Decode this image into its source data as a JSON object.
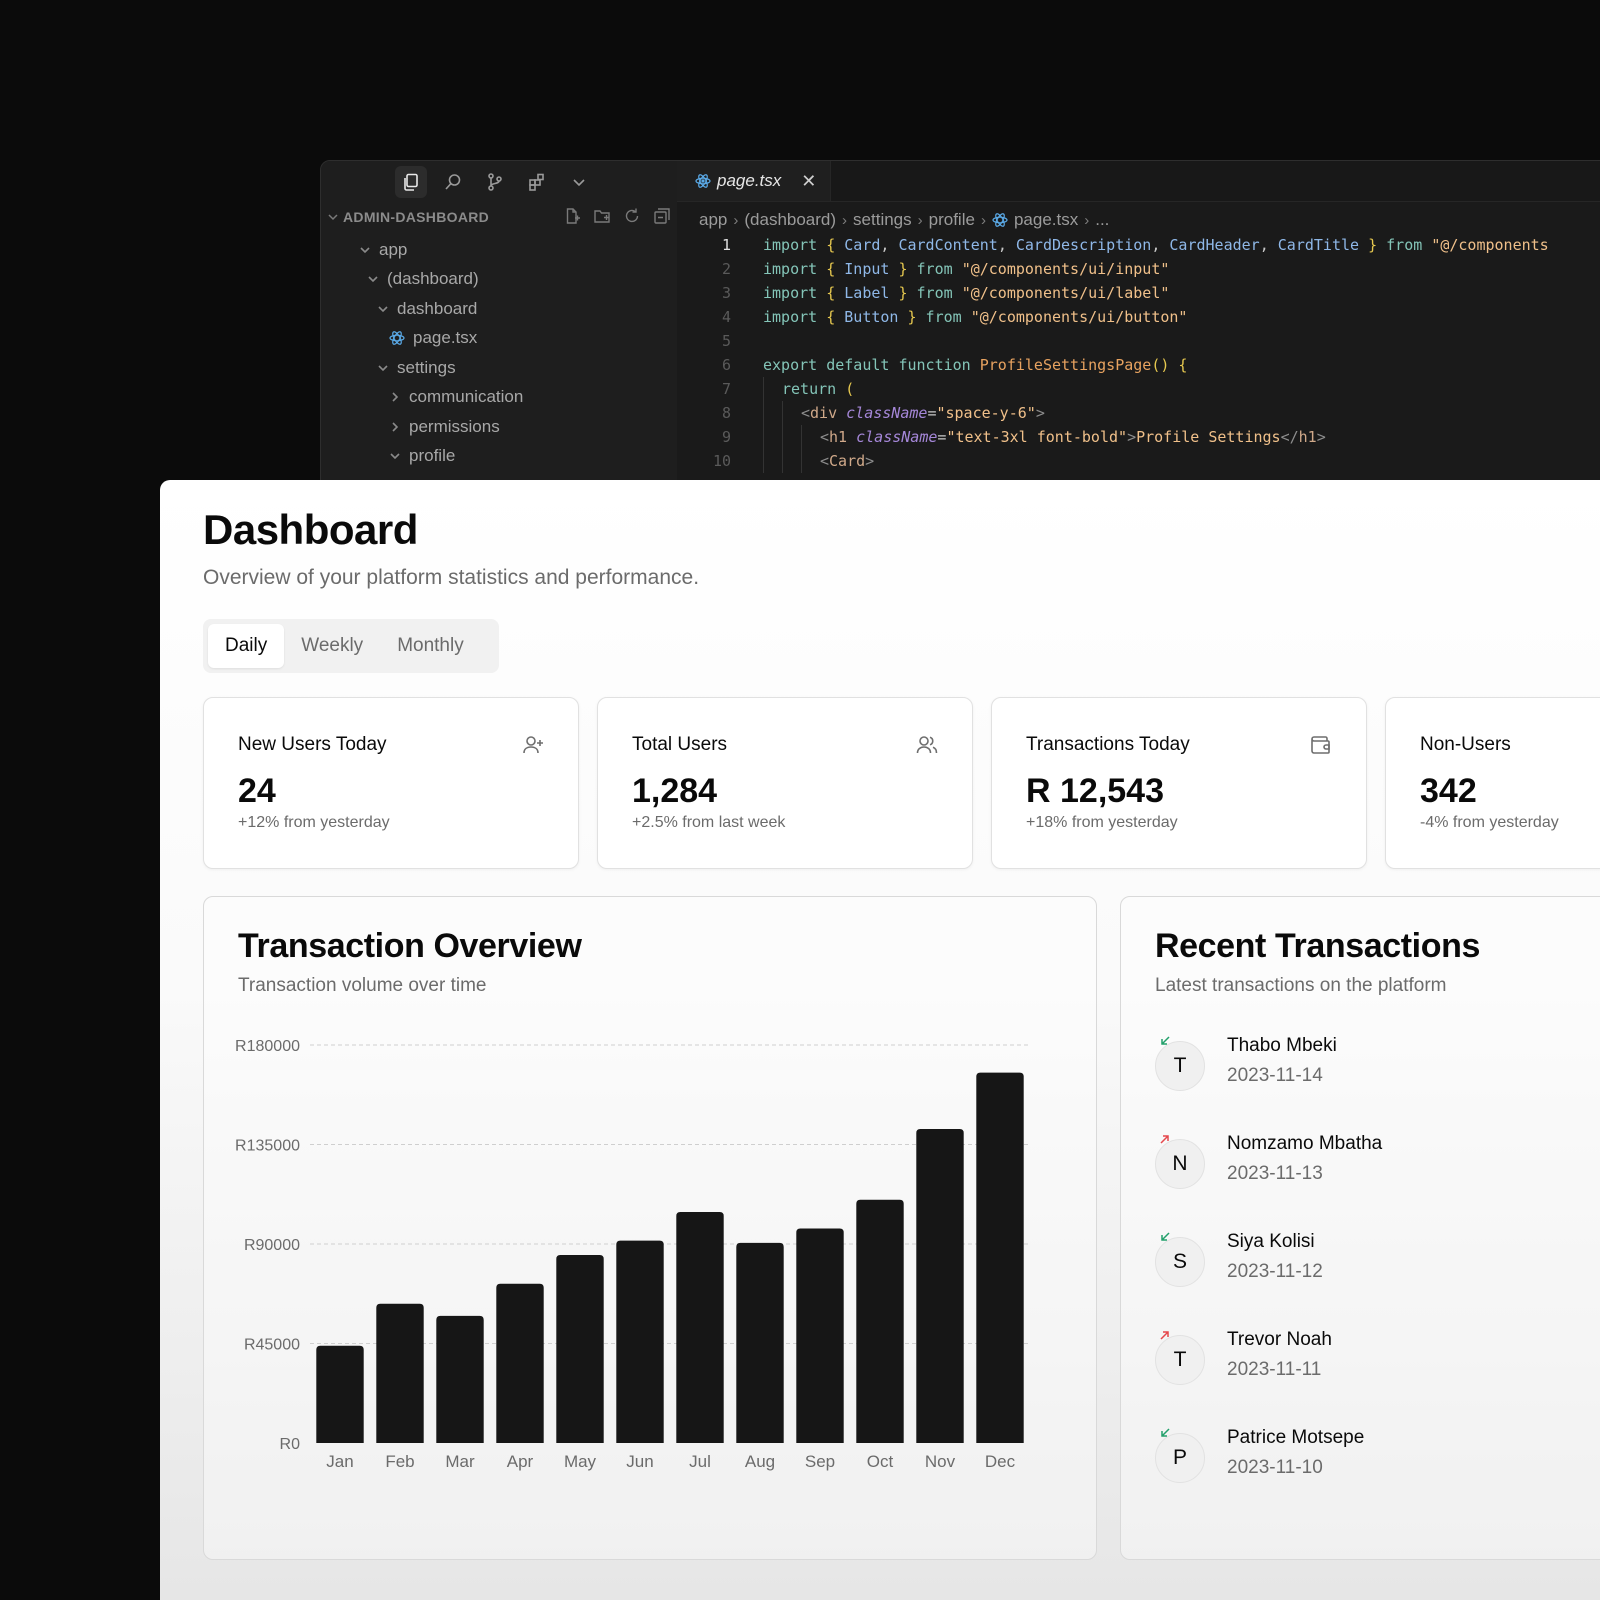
{
  "editor": {
    "explorer_title": "ADMIN-DASHBOARD",
    "tree": [
      {
        "label": "app",
        "depth": 0,
        "type": "folder-open"
      },
      {
        "label": "(dashboard)",
        "depth": 1,
        "type": "folder-open"
      },
      {
        "label": "dashboard",
        "depth": 2,
        "type": "folder-open"
      },
      {
        "label": "page.tsx",
        "depth": 3,
        "type": "react-file"
      },
      {
        "label": "settings",
        "depth": 2,
        "type": "folder-open"
      },
      {
        "label": "communication",
        "depth": 3,
        "type": "folder-closed"
      },
      {
        "label": "permissions",
        "depth": 3,
        "type": "folder-closed"
      },
      {
        "label": "profile",
        "depth": 3,
        "type": "folder-open"
      }
    ],
    "tab_name": "page.tsx",
    "close_glyph": "✕",
    "breadcrumb": [
      "app",
      "(dashboard)",
      "settings",
      "profile",
      "page.tsx",
      "..."
    ],
    "code_lines": [
      {
        "n": "1",
        "indent": 0,
        "tokens": [
          [
            "k",
            "import "
          ],
          [
            "b",
            "{ "
          ],
          [
            "i",
            "Card"
          ],
          [
            "p",
            ", "
          ],
          [
            "i",
            "CardContent"
          ],
          [
            "p",
            ", "
          ],
          [
            "i",
            "CardDescription"
          ],
          [
            "p",
            ", "
          ],
          [
            "i",
            "CardHeader"
          ],
          [
            "p",
            ", "
          ],
          [
            "i",
            "CardTitle"
          ],
          [
            "b",
            " }"
          ],
          [
            "k",
            " from "
          ],
          [
            "s",
            "\"@/components"
          ]
        ]
      },
      {
        "n": "2",
        "indent": 0,
        "tokens": [
          [
            "k",
            "import "
          ],
          [
            "b",
            "{ "
          ],
          [
            "i",
            "Input"
          ],
          [
            "b",
            " }"
          ],
          [
            "k",
            " from "
          ],
          [
            "s",
            "\"@/components/ui/input\""
          ]
        ]
      },
      {
        "n": "3",
        "indent": 0,
        "tokens": [
          [
            "k",
            "import "
          ],
          [
            "b",
            "{ "
          ],
          [
            "i",
            "Label"
          ],
          [
            "b",
            " }"
          ],
          [
            "k",
            " from "
          ],
          [
            "s",
            "\"@/components/ui/label\""
          ]
        ]
      },
      {
        "n": "4",
        "indent": 0,
        "tokens": [
          [
            "k",
            "import "
          ],
          [
            "b",
            "{ "
          ],
          [
            "i",
            "Button"
          ],
          [
            "b",
            " }"
          ],
          [
            "k",
            " from "
          ],
          [
            "s",
            "\"@/components/ui/button\""
          ]
        ]
      },
      {
        "n": "5",
        "indent": 0,
        "tokens": []
      },
      {
        "n": "6",
        "indent": 0,
        "tokens": [
          [
            "k",
            "export default function "
          ],
          [
            "f",
            "ProfileSettingsPage"
          ],
          [
            "b",
            "() {"
          ]
        ]
      },
      {
        "n": "7",
        "indent": 1,
        "tokens": [
          [
            "k",
            "return "
          ],
          [
            "b",
            "("
          ]
        ]
      },
      {
        "n": "8",
        "indent": 2,
        "tokens": [
          [
            "g",
            "<"
          ],
          [
            "t",
            "div "
          ],
          [
            "a",
            "className"
          ],
          [
            "p",
            "="
          ],
          [
            "s",
            "\"space-y-6\""
          ],
          [
            "g",
            ">"
          ]
        ]
      },
      {
        "n": "9",
        "indent": 3,
        "tokens": [
          [
            "g",
            "<"
          ],
          [
            "t",
            "h1 "
          ],
          [
            "a",
            "className"
          ],
          [
            "p",
            "="
          ],
          [
            "s",
            "\"text-3xl font-bold\""
          ],
          [
            "g",
            ">"
          ],
          [
            "s",
            "Profile Settings"
          ],
          [
            "g",
            "</"
          ],
          [
            "t",
            "h1"
          ],
          [
            "g",
            ">"
          ]
        ]
      },
      {
        "n": "10",
        "indent": 3,
        "tokens": [
          [
            "g",
            "<"
          ],
          [
            "t",
            "Card"
          ],
          [
            "g",
            ">"
          ]
        ]
      }
    ]
  },
  "dashboard": {
    "title": "Dashboard",
    "subtitle": "Overview of your platform statistics and performance.",
    "tabs": [
      {
        "label": "Daily",
        "selected": true
      },
      {
        "label": "Weekly",
        "selected": false
      },
      {
        "label": "Monthly",
        "selected": false
      }
    ],
    "stats": [
      {
        "label": "New Users Today",
        "value": "24",
        "change": "+12% from yesterday",
        "icon": "user-plus-icon"
      },
      {
        "label": "Total Users",
        "value": "1,284",
        "change": "+2.5% from last week",
        "icon": "users-icon"
      },
      {
        "label": "Transactions Today",
        "value": "R 12,543",
        "change": "+18% from yesterday",
        "icon": "wallet-icon"
      },
      {
        "label": "Non-Users",
        "value": "342",
        "change": "-4% from yesterday",
        "icon": ""
      }
    ],
    "overview": {
      "title": "Transaction Overview",
      "subtitle": "Transaction volume over time"
    },
    "recent": {
      "title": "Recent Transactions",
      "subtitle": "Latest transactions on the platform",
      "items": [
        {
          "initial": "T",
          "name": "Thabo Mbeki",
          "date": "2023-11-14",
          "direction": "incoming",
          "arrow_color": "#22a06b"
        },
        {
          "initial": "N",
          "name": "Nomzamo Mbatha",
          "date": "2023-11-13",
          "direction": "outgoing",
          "arrow_color": "#e5484d"
        },
        {
          "initial": "S",
          "name": "Siya Kolisi",
          "date": "2023-11-12",
          "direction": "incoming",
          "arrow_color": "#22a06b"
        },
        {
          "initial": "T",
          "name": "Trevor Noah",
          "date": "2023-11-11",
          "direction": "outgoing",
          "arrow_color": "#e5484d"
        },
        {
          "initial": "P",
          "name": "Patrice Motsepe",
          "date": "2023-11-10",
          "direction": "incoming",
          "arrow_color": "#22a06b"
        }
      ]
    }
  },
  "chart_data": {
    "type": "bar",
    "categories": [
      "Jan",
      "Feb",
      "Mar",
      "Apr",
      "May",
      "Jun",
      "Jul",
      "Aug",
      "Sep",
      "Oct",
      "Nov",
      "Dec"
    ],
    "values": [
      44000,
      63000,
      57500,
      72000,
      85000,
      91500,
      104500,
      90500,
      97000,
      110000,
      142000,
      167500
    ],
    "ylim": [
      0,
      180000
    ],
    "yticks": [
      0,
      45000,
      90000,
      135000,
      180000
    ],
    "ytick_labels": [
      "R0",
      "R45000",
      "R90000",
      "R135000",
      "R180000"
    ],
    "grid": true,
    "bar_color": "#161616"
  }
}
